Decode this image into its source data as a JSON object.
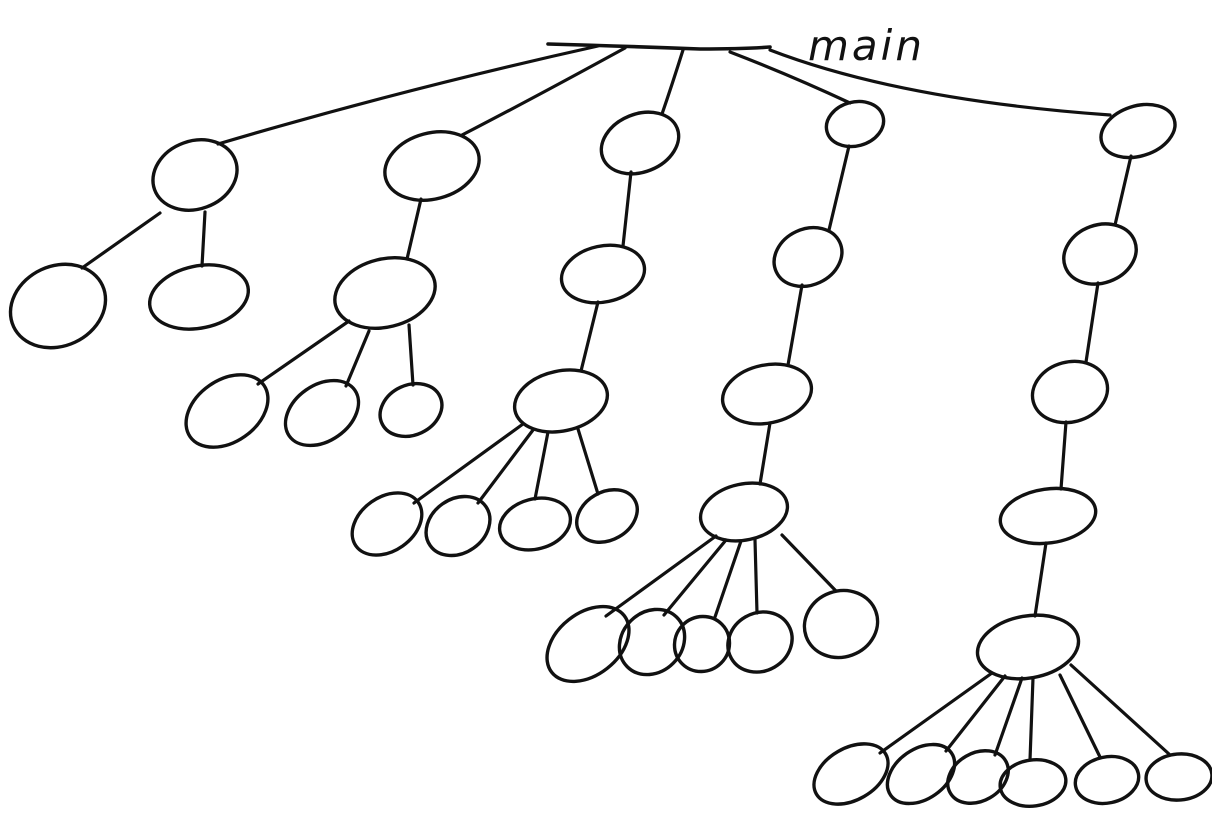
{
  "diagram": {
    "root_label": "main",
    "branch_count": 5,
    "ink_color": "#111111",
    "background_color": "#ffffff"
  }
}
